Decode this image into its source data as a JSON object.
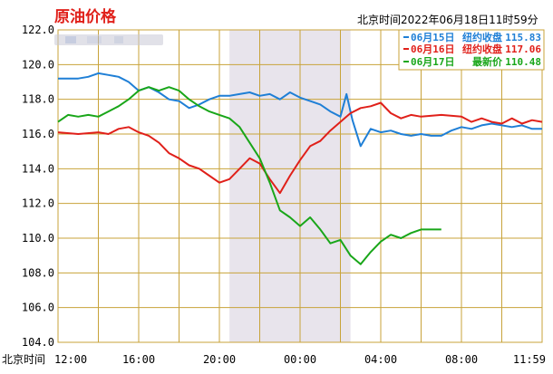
{
  "header": {
    "title": "原油价格",
    "timestamp": "北京时间2022年06月18日11时59分"
  },
  "colors": {
    "background": "#ffffff",
    "grid": "#c8a33a",
    "shaded_band": "#e8e4ec",
    "series_0615": "#1f7fd6",
    "series_0616": "#e0201a",
    "series_0617": "#19a619"
  },
  "chart_data": {
    "type": "line",
    "title": "原油价格",
    "xlabel": "北京时间",
    "ylabel": "",
    "x_ticks": [
      "12:00",
      "16:00",
      "20:00",
      "00:00",
      "04:00",
      "08:00",
      "11:59"
    ],
    "x_range_hours": [
      0,
      24
    ],
    "y_ticks": [
      "104.0",
      "106.0",
      "108.0",
      "110.0",
      "112.0",
      "114.0",
      "116.0",
      "118.0",
      "120.0",
      "122.0"
    ],
    "ylim": [
      104,
      122
    ],
    "grid": true,
    "shaded_period": [
      "20:30",
      "02:30"
    ],
    "legend_position": "top-right",
    "series": [
      {
        "name": "06月15日",
        "label": "纽约收盘",
        "value": "115.83",
        "color": "#1f7fd6",
        "points": [
          [
            0,
            119.2
          ],
          [
            1,
            119.2
          ],
          [
            1.5,
            119.3
          ],
          [
            2,
            119.5
          ],
          [
            2.5,
            119.4
          ],
          [
            3,
            119.3
          ],
          [
            3.5,
            119.0
          ],
          [
            4,
            118.5
          ],
          [
            4.5,
            118.7
          ],
          [
            5,
            118.4
          ],
          [
            5.5,
            118.0
          ],
          [
            6,
            117.9
          ],
          [
            6.5,
            117.5
          ],
          [
            7,
            117.7
          ],
          [
            7.5,
            118.0
          ],
          [
            8,
            118.2
          ],
          [
            8.5,
            118.2
          ],
          [
            9,
            118.3
          ],
          [
            9.5,
            118.4
          ],
          [
            10,
            118.2
          ],
          [
            10.5,
            118.3
          ],
          [
            11,
            118.0
          ],
          [
            11.5,
            118.4
          ],
          [
            12,
            118.1
          ],
          [
            12.5,
            117.9
          ],
          [
            13,
            117.7
          ],
          [
            13.5,
            117.3
          ],
          [
            14,
            117.0
          ],
          [
            14.3,
            118.3
          ],
          [
            14.6,
            116.8
          ],
          [
            15,
            115.3
          ],
          [
            15.5,
            116.3
          ],
          [
            16,
            116.1
          ],
          [
            16.5,
            116.2
          ],
          [
            17,
            116.0
          ],
          [
            17.5,
            115.9
          ],
          [
            18,
            116.0
          ],
          [
            18.5,
            115.9
          ],
          [
            19,
            115.9
          ],
          [
            19.5,
            116.2
          ],
          [
            20,
            116.4
          ],
          [
            20.5,
            116.3
          ],
          [
            21,
            116.5
          ],
          [
            21.5,
            116.6
          ],
          [
            22,
            116.5
          ],
          [
            22.5,
            116.4
          ],
          [
            23,
            116.5
          ],
          [
            23.5,
            116.3
          ],
          [
            24,
            116.3
          ]
        ]
      },
      {
        "name": "06月16日",
        "label": "纽约收盘",
        "value": "117.06",
        "color": "#e0201a",
        "points": [
          [
            0,
            116.1
          ],
          [
            1,
            116.0
          ],
          [
            2,
            116.1
          ],
          [
            2.5,
            116.0
          ],
          [
            3,
            116.3
          ],
          [
            3.5,
            116.4
          ],
          [
            4,
            116.1
          ],
          [
            4.5,
            115.9
          ],
          [
            5,
            115.5
          ],
          [
            5.5,
            114.9
          ],
          [
            6,
            114.6
          ],
          [
            6.5,
            114.2
          ],
          [
            7,
            114.0
          ],
          [
            7.5,
            113.6
          ],
          [
            8,
            113.2
          ],
          [
            8.5,
            113.4
          ],
          [
            9,
            114.0
          ],
          [
            9.5,
            114.6
          ],
          [
            10,
            114.3
          ],
          [
            10.5,
            113.4
          ],
          [
            11,
            112.6
          ],
          [
            11.5,
            113.6
          ],
          [
            12,
            114.5
          ],
          [
            12.5,
            115.3
          ],
          [
            13,
            115.6
          ],
          [
            13.5,
            116.2
          ],
          [
            14,
            116.7
          ],
          [
            14.5,
            117.2
          ],
          [
            15,
            117.5
          ],
          [
            15.5,
            117.6
          ],
          [
            16,
            117.8
          ],
          [
            16.5,
            117.2
          ],
          [
            17,
            116.9
          ],
          [
            17.5,
            117.1
          ],
          [
            18,
            117.0
          ],
          [
            19,
            117.1
          ],
          [
            20,
            117.0
          ],
          [
            20.5,
            116.7
          ],
          [
            21,
            116.9
          ],
          [
            21.5,
            116.7
          ],
          [
            22,
            116.6
          ],
          [
            22.5,
            116.9
          ],
          [
            23,
            116.6
          ],
          [
            23.5,
            116.8
          ],
          [
            24,
            116.7
          ]
        ]
      },
      {
        "name": "06月17日",
        "label": "最新价",
        "value": "110.48",
        "color": "#19a619",
        "points": [
          [
            0,
            116.7
          ],
          [
            0.5,
            117.1
          ],
          [
            1,
            117.0
          ],
          [
            1.5,
            117.1
          ],
          [
            2,
            117.0
          ],
          [
            2.5,
            117.3
          ],
          [
            3,
            117.6
          ],
          [
            3.5,
            118.0
          ],
          [
            4,
            118.5
          ],
          [
            4.5,
            118.7
          ],
          [
            5,
            118.5
          ],
          [
            5.5,
            118.7
          ],
          [
            6,
            118.5
          ],
          [
            6.5,
            118.0
          ],
          [
            7,
            117.6
          ],
          [
            7.5,
            117.3
          ],
          [
            8,
            117.1
          ],
          [
            8.5,
            116.9
          ],
          [
            9,
            116.4
          ],
          [
            9.5,
            115.5
          ],
          [
            10,
            114.6
          ],
          [
            10.5,
            113.2
          ],
          [
            11,
            111.6
          ],
          [
            11.5,
            111.2
          ],
          [
            12,
            110.7
          ],
          [
            12.5,
            111.2
          ],
          [
            13,
            110.5
          ],
          [
            13.5,
            109.7
          ],
          [
            14,
            109.9
          ],
          [
            14.5,
            109.0
          ],
          [
            15,
            108.5
          ],
          [
            15.5,
            109.2
          ],
          [
            16,
            109.8
          ],
          [
            16.5,
            110.2
          ],
          [
            17,
            110.0
          ],
          [
            17.5,
            110.3
          ],
          [
            18,
            110.5
          ],
          [
            19,
            110.5
          ]
        ]
      }
    ]
  }
}
